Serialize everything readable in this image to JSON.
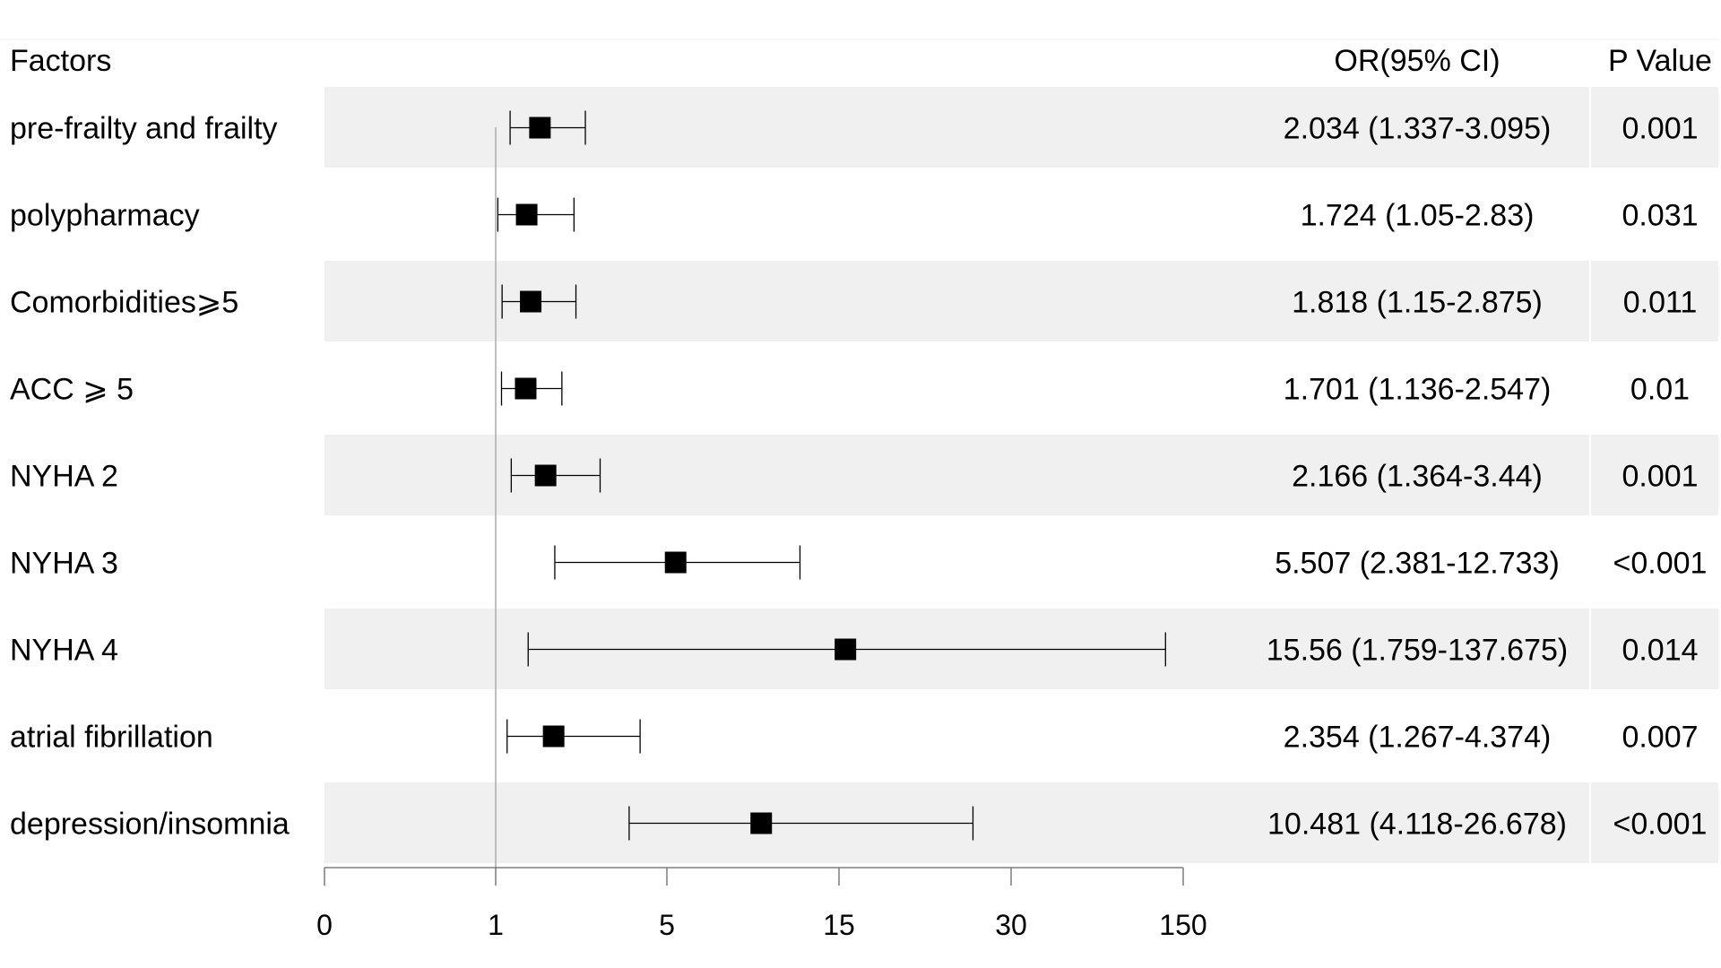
{
  "headers": {
    "factors": "Factors",
    "or_ci": "OR(95% CI)",
    "p_value": "P Value"
  },
  "chart_data": {
    "type": "forest",
    "x_axis": {
      "tick_labels": [
        "0",
        "1",
        "5",
        "15",
        "30",
        "150"
      ],
      "reference_line_at": "1"
    },
    "rows": [
      {
        "factor": "pre-frailty and frailty",
        "or": 2.034,
        "lower": 1.337,
        "upper": 3.095,
        "or_text": "2.034 (1.337-3.095)",
        "p": "0.001",
        "shaded": true
      },
      {
        "factor": "polypharmacy",
        "or": 1.724,
        "lower": 1.05,
        "upper": 2.83,
        "or_text": "1.724 (1.05-2.83)",
        "p": "0.031",
        "shaded": false
      },
      {
        "factor": "Comorbidities⩾5",
        "or": 1.818,
        "lower": 1.15,
        "upper": 2.875,
        "or_text": "1.818 (1.15-2.875)",
        "p": "0.011",
        "shaded": true
      },
      {
        "factor": "ACC ⩾ 5",
        "or": 1.701,
        "lower": 1.136,
        "upper": 2.547,
        "or_text": "1.701 (1.136-2.547)",
        "p": "0.01",
        "shaded": false
      },
      {
        "factor": "NYHA 2",
        "or": 2.166,
        "lower": 1.364,
        "upper": 3.44,
        "or_text": "2.166 (1.364-3.44)",
        "p": "0.001",
        "shaded": true
      },
      {
        "factor": "NYHA 3",
        "or": 5.507,
        "lower": 2.381,
        "upper": 12.733,
        "or_text": "5.507 (2.381-12.733)",
        "p": "<0.001",
        "shaded": false
      },
      {
        "factor": "NYHA 4",
        "or": 15.56,
        "lower": 1.759,
        "upper": 137.675,
        "or_text": "15.56 (1.759-137.675)",
        "p": "0.014",
        "shaded": true
      },
      {
        "factor": "atrial fibrillation",
        "or": 2.354,
        "lower": 1.267,
        "upper": 4.374,
        "or_text": "2.354 (1.267-4.374)",
        "p": "0.007",
        "shaded": false
      },
      {
        "factor": "depression/insomnia",
        "or": 10.481,
        "lower": 4.118,
        "upper": 26.678,
        "or_text": "10.481 (4.118-26.678)",
        "p": "<0.001",
        "shaded": true
      }
    ],
    "colors": {
      "row_shade": "#f0f0f0",
      "marker": "#000000",
      "reference_line": "#aaaaaa",
      "axis": "#666666"
    }
  }
}
